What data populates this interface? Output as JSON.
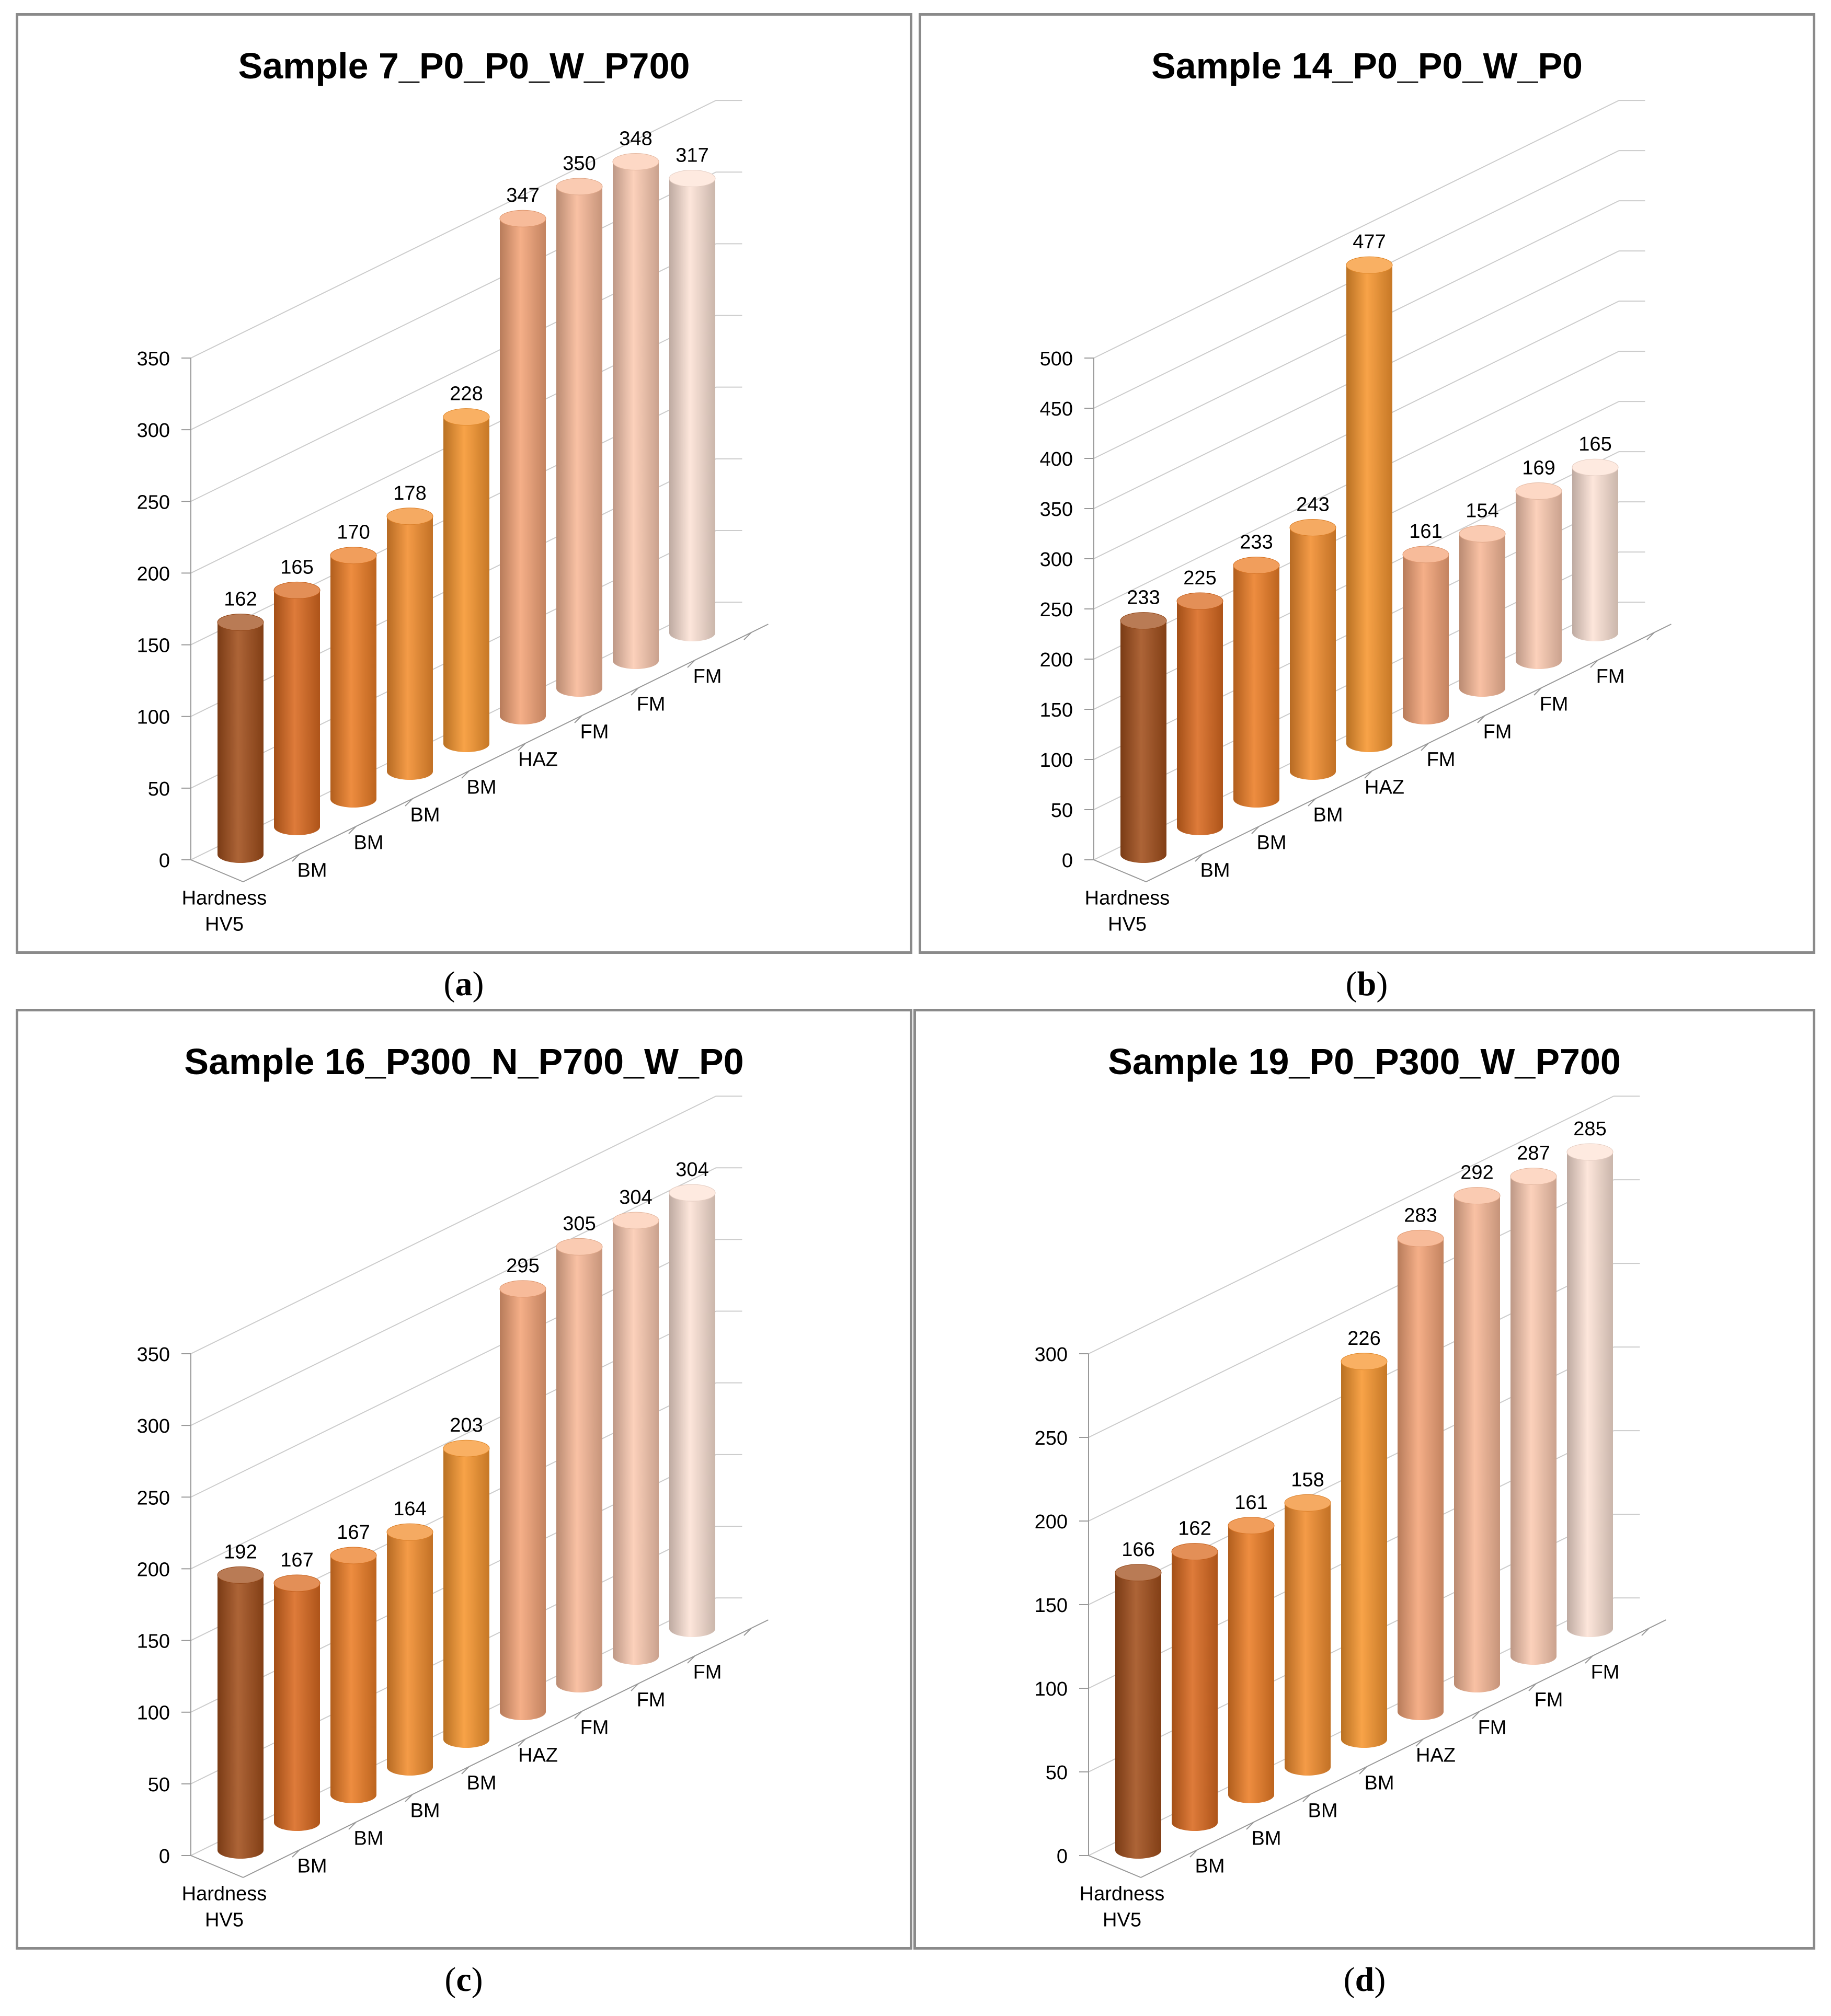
{
  "figure": {
    "panel_labels": [
      "a",
      "b",
      "c",
      "d"
    ]
  },
  "colors": {
    "bar": [
      "#a24f1c",
      "#d9691f",
      "#ec7d26",
      "#f28d2e",
      "#f7962f",
      "#f4a478",
      "#f8b998",
      "#fccbb2",
      "#fde3d6"
    ],
    "grid": "#cccccc",
    "axis": "#999999",
    "text": "#000000"
  },
  "chart_data": [
    {
      "type": "bar",
      "title": "Sample 7_P0_P0_W_P700",
      "categories": [
        "Hardness HV5",
        "BM",
        "BM",
        "BM",
        "BM",
        "HAZ",
        "FM",
        "FM",
        "FM"
      ],
      "values": [
        162,
        165,
        170,
        178,
        228,
        347,
        350,
        348,
        317
      ],
      "yticks": [
        0,
        50,
        100,
        150,
        200,
        250,
        300,
        350
      ],
      "ylim": [
        0,
        350
      ]
    },
    {
      "type": "bar",
      "title": "Sample 14_P0_P0_W_P0",
      "categories": [
        "Hardness HV5",
        "BM",
        "BM",
        "BM",
        "HAZ",
        "FM",
        "FM",
        "FM",
        "FM"
      ],
      "values": [
        233,
        225,
        233,
        243,
        477,
        161,
        154,
        169,
        165
      ],
      "yticks": [
        0,
        50,
        100,
        150,
        200,
        250,
        300,
        350,
        400,
        450,
        500
      ],
      "ylim": [
        0,
        500
      ]
    },
    {
      "type": "bar",
      "title": "Sample 16_P300_N_P700_W_P0",
      "categories": [
        "Hardness HV5",
        "BM",
        "BM",
        "BM",
        "BM",
        "HAZ",
        "FM",
        "FM",
        "FM"
      ],
      "values": [
        192,
        167,
        167,
        164,
        203,
        295,
        305,
        304,
        304
      ],
      "yticks": [
        0,
        50,
        100,
        150,
        200,
        250,
        300,
        350
      ],
      "ylim": [
        0,
        350
      ]
    },
    {
      "type": "bar",
      "title": "Sample 19_P0_P300_W_P700",
      "categories": [
        "Hardness HV5",
        "BM",
        "BM",
        "BM",
        "BM",
        "HAZ",
        "FM",
        "FM",
        "FM"
      ],
      "values": [
        166,
        162,
        161,
        158,
        226,
        283,
        292,
        287,
        285
      ],
      "yticks": [
        0,
        50,
        100,
        150,
        200,
        250,
        300
      ],
      "ylim": [
        0,
        300
      ]
    }
  ]
}
